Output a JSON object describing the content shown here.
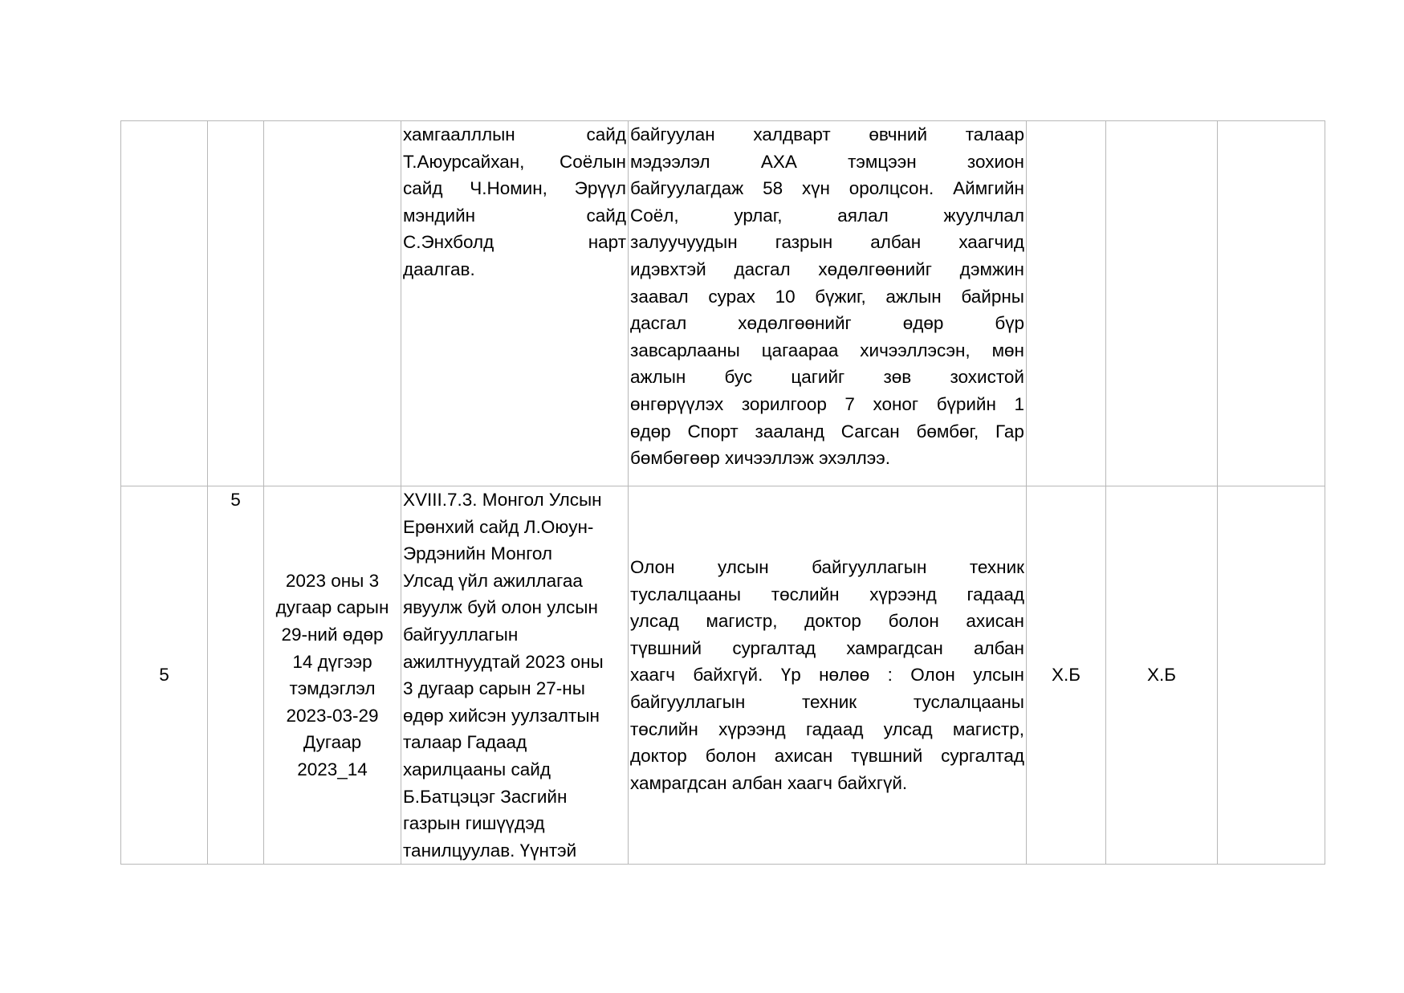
{
  "rows": [
    {
      "col1": "",
      "col2": "",
      "col3_lines": [],
      "col4_lines": [
        "хамгаалллын сайд",
        "Т.Аюурсайхан, Соёлын",
        "сайд Ч.Номин, Эрүүл",
        "мэндийн сайд",
        "С.Энхболд нарт",
        "даалгав."
      ],
      "col5_lines": [
        "байгуулан халдварт өвчний талаар",
        "мэдээлэл АХА тэмцээн зохион",
        "байгуулагдаж 58 хүн оролцсон. Аймгийн",
        "Соёл, урлаг, аялал жуулчлал",
        "залуучуудын газрын албан хаагчид",
        "идэвхтэй дасгал хөдөлгөөнийг дэмжин",
        "заавал сурах 10 бүжиг, ажлын байрны",
        "дасгал хөдөлгөөнийг өдөр бүр",
        "завсарлааны цагаараа хичээллэсэн, мөн",
        "ажлын бус цагийг зөв зохистой",
        "өнгөрүүлэх зорилгоор 7 хоног бүрийн 1",
        "өдөр Спорт зааланд Сагсан бөмбөг, Гар",
        "бөмбөгөөр хичээллэж эхэллээ."
      ],
      "col6": "",
      "col7": "",
      "col8": ""
    },
    {
      "col1": "5",
      "col2": "5",
      "col3_lines": [
        "2023 оны 3",
        "дугаар сарын",
        "29-ний өдөр",
        "14 дүгээр",
        "тэмдэглэл",
        "2023-03-29",
        "Дугаар",
        "2023_14"
      ],
      "col4_lines": [
        "XVIII.7.3. Монгол Улсын",
        "Ерөнхий сайд Л.Оюун-",
        "Эрдэнийн Монгол",
        "Улсад үйл ажиллагаа",
        "явуулж буй олон улсын",
        "байгууллагын",
        "ажилтнуудтай 2023 оны",
        "3 дугаар сарын 27-ны",
        "өдөр хийсэн уулзалтын",
        "талаар Гадаад",
        "харилцааны сайд",
        "Б.Батцэцэг Засгийн",
        "газрын гишүүдэд",
        "танилцуулав.  Үүнтэй"
      ],
      "col5_lines": [
        "Олон улсын байгууллагын техник",
        "туслалцааны төслийн хүрээнд гадаад",
        "улсад магистр, доктор болон ахисан",
        "түвшний сургалтад хамрагдсан албан",
        "хаагч байхгүй. Үр нөлөө : Олон улсын",
        "байгууллагын техник туслалцааны",
        "төслийн хүрээнд гадаад улсад магистр,",
        "доктор болон ахисан түвшний сургалтад",
        "хамрагдсан албан хаагч байхгүй."
      ],
      "col6": "Х.Б",
      "col7": "Х.Б",
      "col8": ""
    }
  ]
}
